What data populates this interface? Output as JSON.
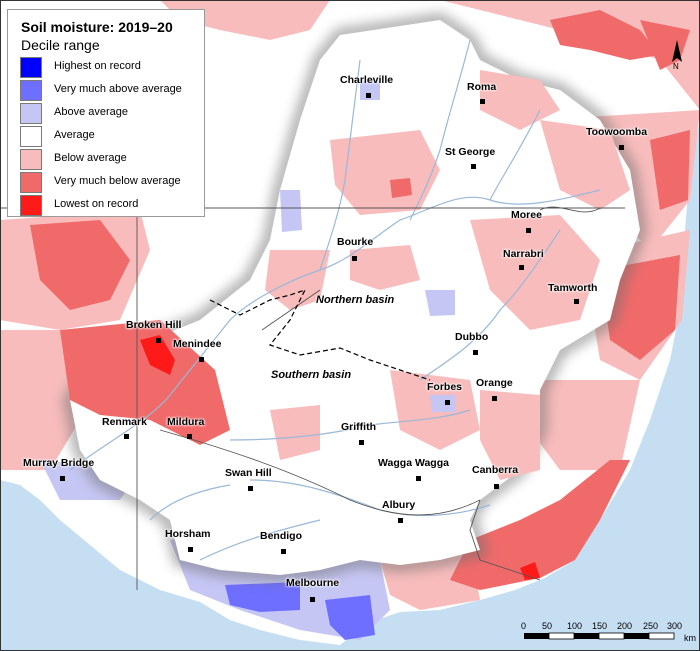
{
  "legend": {
    "title": "Soil moisture: 2019–20",
    "subtitle": "Decile range",
    "items": [
      {
        "label": "Highest on record",
        "color": "#0000ff"
      },
      {
        "label": "Very much above average",
        "color": "#6f6fff"
      },
      {
        "label": "Above average",
        "color": "#c6c6f5"
      },
      {
        "label": "Average",
        "color": "#ffffff"
      },
      {
        "label": "Below average",
        "color": "#f8bcbc"
      },
      {
        "label": "Very much below average",
        "color": "#f06a6a"
      },
      {
        "label": "Lowest on record",
        "color": "#ff1a1a"
      }
    ]
  },
  "places": [
    "Charleville",
    "Roma",
    "Toowoomba",
    "St George",
    "Moree",
    "Narrabri",
    "Bourke",
    "Tamworth",
    "Broken Hill",
    "Menindee",
    "Dubbo",
    "Forbes",
    "Orange",
    "Renmark",
    "Mildura",
    "Griffith",
    "Murray Bridge",
    "Wagga Wagga",
    "Canberra",
    "Swan Hill",
    "Albury",
    "Horsham",
    "Bendigo",
    "Melbourne"
  ],
  "basins": [
    "Northern basin",
    "Southern basin"
  ],
  "scale_bar": {
    "ticks": [
      "0",
      "50",
      "100",
      "150",
      "200",
      "250",
      "300"
    ],
    "unit": "km"
  },
  "north_arrow": {
    "label": "N"
  },
  "colors": {
    "sea": "#c6def2",
    "land": "#ffffff",
    "rivers": "#9ab8d8",
    "state_border": "#555555"
  }
}
